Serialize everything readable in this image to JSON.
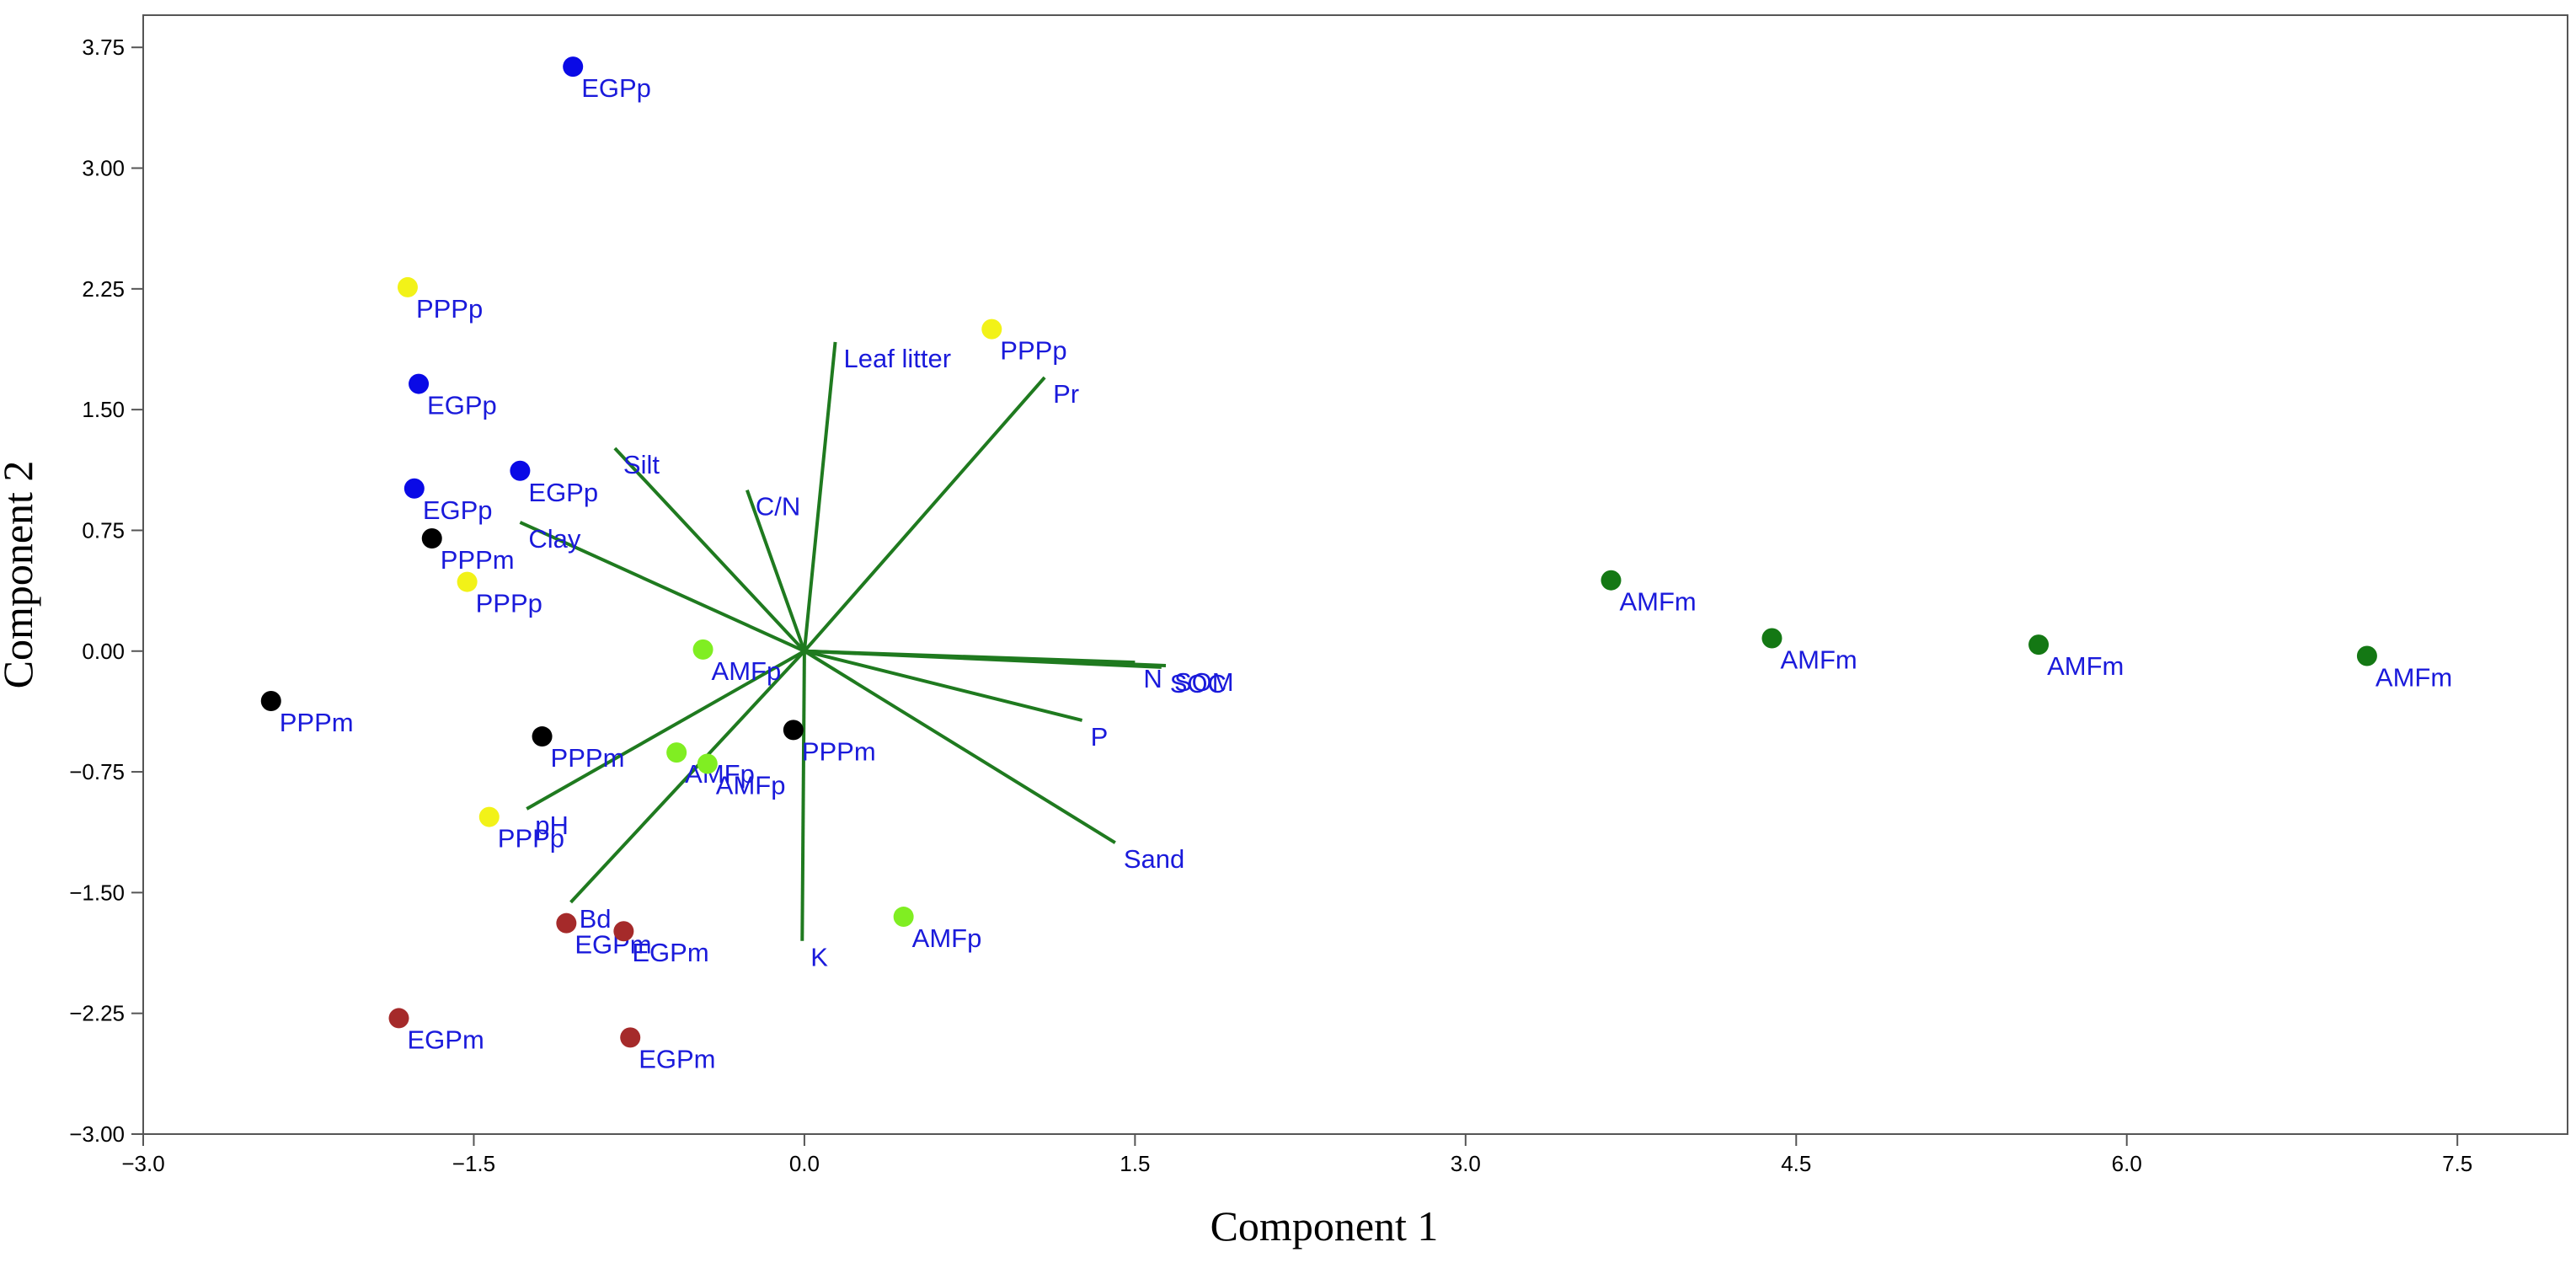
{
  "chart_data": {
    "type": "scatter",
    "title": "",
    "xlabel": "Component 1",
    "ylabel": "Component 2",
    "xlim": [
      -3.0,
      8.0
    ],
    "ylim": [
      -3.0,
      3.95
    ],
    "xticks": [
      -3.0,
      -1.5,
      0.0,
      1.5,
      3.0,
      4.5,
      6.0,
      7.5
    ],
    "xtick_labels": [
      "−3.0",
      "−1.5",
      "0.0",
      "1.5",
      "3.0",
      "4.5",
      "6.0",
      "7.5"
    ],
    "yticks": [
      -3.0,
      -2.25,
      -1.5,
      -0.75,
      0.0,
      0.75,
      1.5,
      2.25,
      3.0,
      3.75
    ],
    "ytick_labels": [
      "−3.00",
      "−2.25",
      "−1.50",
      "−0.75",
      "0.00",
      "0.75",
      "1.50",
      "2.25",
      "3.00",
      "3.75"
    ],
    "grid": false,
    "label_color": "#1a1adb",
    "vector_color": "#1f7a1f",
    "group_colors": {
      "EGPp": "#0a0ae6",
      "EGPm": "#a52a2a",
      "PPPp": "#f2f218",
      "PPPm": "#000000",
      "AMFp": "#80ee22",
      "AMFm": "#147814"
    },
    "points": [
      {
        "label": "EGPp",
        "x": -1.05,
        "y": 3.63
      },
      {
        "label": "EGPp",
        "x": -1.75,
        "y": 1.66
      },
      {
        "label": "EGPp",
        "x": -1.77,
        "y": 1.01
      },
      {
        "label": "EGPp",
        "x": -1.29,
        "y": 1.12
      },
      {
        "label": "PPPp",
        "x": -1.8,
        "y": 2.26
      },
      {
        "label": "PPPp",
        "x": 0.85,
        "y": 2.0
      },
      {
        "label": "PPPp",
        "x": -1.53,
        "y": 0.43
      },
      {
        "label": "PPPp",
        "x": -1.43,
        "y": -1.03
      },
      {
        "label": "PPPm",
        "x": -1.69,
        "y": 0.7
      },
      {
        "label": "PPPm",
        "x": -2.42,
        "y": -0.31
      },
      {
        "label": "PPPm",
        "x": -1.19,
        "y": -0.53
      },
      {
        "label": "PPPm",
        "x": -0.05,
        "y": -0.49
      },
      {
        "label": "AMFp",
        "x": -0.46,
        "y": 0.01
      },
      {
        "label": "AMFp",
        "x": -0.58,
        "y": -0.63
      },
      {
        "label": "AMFp",
        "x": -0.44,
        "y": -0.7
      },
      {
        "label": "AMFp",
        "x": 0.45,
        "y": -1.65
      },
      {
        "label": "EGPm",
        "x": -1.08,
        "y": -1.69
      },
      {
        "label": "EGPm",
        "x": -0.82,
        "y": -1.74
      },
      {
        "label": "EGPm",
        "x": -1.84,
        "y": -2.28
      },
      {
        "label": "EGPm",
        "x": -0.79,
        "y": -2.4
      },
      {
        "label": "AMFm",
        "x": 3.66,
        "y": 0.44
      },
      {
        "label": "AMFm",
        "x": 4.39,
        "y": 0.08
      },
      {
        "label": "AMFm",
        "x": 5.6,
        "y": 0.04
      },
      {
        "label": "AMFm",
        "x": 7.09,
        "y": -0.03
      }
    ],
    "vectors": [
      {
        "label": "Leaf litter",
        "x": 0.14,
        "y": 1.92
      },
      {
        "label": "Pr",
        "x": 1.09,
        "y": 1.7
      },
      {
        "label": "Silt",
        "x": -0.86,
        "y": 1.26
      },
      {
        "label": "C/N",
        "x": -0.26,
        "y": 1.0
      },
      {
        "label": "Clay",
        "x": -1.29,
        "y": 0.8
      },
      {
        "label": "N",
        "x": 1.5,
        "y": -0.07
      },
      {
        "label": "SOM",
        "x": 1.64,
        "y": -0.09
      },
      {
        "label": "SOC",
        "x": 1.62,
        "y": -0.1
      },
      {
        "label": "P",
        "x": 1.26,
        "y": -0.43
      },
      {
        "label": "Sand",
        "x": 1.41,
        "y": -1.19
      },
      {
        "label": "pH",
        "x": -1.26,
        "y": -0.98
      },
      {
        "label": "Bd",
        "x": -1.06,
        "y": -1.56
      },
      {
        "label": "K",
        "x": -0.01,
        "y": -1.8
      }
    ]
  }
}
